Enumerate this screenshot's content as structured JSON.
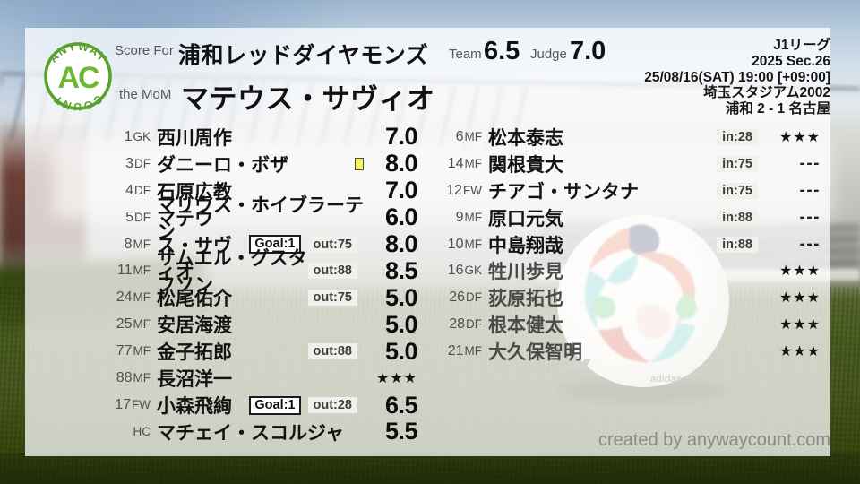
{
  "header": {
    "logo": {
      "arc_top": "ANYWAY",
      "center": "AC",
      "arc_bottom": "COUNT"
    },
    "score_for_label": "Score For",
    "team_name": "浦和レッドダイヤモンズ",
    "mom_label": "the MoM",
    "mom_name": "マテウス・サヴィオ",
    "team_score_label": "Team",
    "team_score": "6.5",
    "judge_score_label": "Judge",
    "judge_score": "7.0"
  },
  "match": {
    "league": "J1リーグ",
    "season": "2025 Sec.26",
    "datetime": "25/08/16(SAT) 19:00 [+09:00]",
    "venue": "埼玉スタジアム2002",
    "result": "浦和 2 - 1 名古屋"
  },
  "colors": {
    "logo_green": "#5aa32c",
    "yellow_card": "#f7f65f",
    "panel_overlay": "rgba(255,255,255,0.75)"
  },
  "squad": {
    "starters": [
      {
        "num": "1",
        "pos": "GK",
        "name": "西川周作",
        "rating": "7.0",
        "type": "score"
      },
      {
        "num": "3",
        "pos": "DF",
        "name": "ダニーロ・ボザ",
        "rating": "8.0",
        "type": "score",
        "yellow": true
      },
      {
        "num": "4",
        "pos": "DF",
        "name": "石原広教",
        "rating": "7.0",
        "type": "score"
      },
      {
        "num": "5",
        "pos": "DF",
        "name": "マリウス・ホイブラーテン",
        "rating": "6.0",
        "type": "score"
      },
      {
        "num": "8",
        "pos": "MF",
        "name": "マテウス・サヴィオ",
        "rating": "8.0",
        "type": "score",
        "goal": "Goal:1",
        "sub": "out:75"
      },
      {
        "num": "11",
        "pos": "MF",
        "name": "サムエル・グスタフソン",
        "rating": "8.5",
        "type": "score",
        "sub": "out:88"
      },
      {
        "num": "24",
        "pos": "MF",
        "name": "松尾佑介",
        "rating": "5.0",
        "type": "score",
        "sub": "out:75"
      },
      {
        "num": "25",
        "pos": "MF",
        "name": "安居海渡",
        "rating": "5.0",
        "type": "score"
      },
      {
        "num": "77",
        "pos": "MF",
        "name": "金子拓郎",
        "rating": "5.0",
        "type": "score",
        "sub": "out:88"
      },
      {
        "num": "88",
        "pos": "MF",
        "name": "長沼洋一",
        "rating": "★★★",
        "type": "stars"
      },
      {
        "num": "17",
        "pos": "FW",
        "name": "小森飛絢",
        "rating": "6.5",
        "type": "score",
        "goal": "Goal:1",
        "sub": "out:28"
      },
      {
        "num": "",
        "pos": "HC",
        "name": "マチェイ・スコルジャ",
        "rating": "5.5",
        "type": "score"
      }
    ],
    "bench": [
      {
        "num": "6",
        "pos": "MF",
        "name": "松本泰志",
        "rating": "★★★",
        "type": "stars",
        "sub": "in:28"
      },
      {
        "num": "14",
        "pos": "MF",
        "name": "関根貴大",
        "rating": "---",
        "type": "dashes",
        "sub": "in:75"
      },
      {
        "num": "12",
        "pos": "FW",
        "name": "チアゴ・サンタナ",
        "rating": "---",
        "type": "dashes",
        "sub": "in:75"
      },
      {
        "num": "9",
        "pos": "MF",
        "name": "原口元気",
        "rating": "---",
        "type": "dashes",
        "sub": "in:88"
      },
      {
        "num": "10",
        "pos": "MF",
        "name": "中島翔哉",
        "rating": "---",
        "type": "dashes",
        "sub": "in:88"
      },
      {
        "num": "16",
        "pos": "GK",
        "name": "牲川歩見",
        "rating": "★★★",
        "type": "stars",
        "dim": true
      },
      {
        "num": "26",
        "pos": "DF",
        "name": "荻原拓也",
        "rating": "★★★",
        "type": "stars",
        "dim": true
      },
      {
        "num": "28",
        "pos": "DF",
        "name": "根本健太",
        "rating": "★★★",
        "type": "stars",
        "dim": true
      },
      {
        "num": "21",
        "pos": "MF",
        "name": "大久保智明",
        "rating": "★★★",
        "type": "stars",
        "dim": true
      }
    ]
  },
  "footer": {
    "credit": "created by anywaycount.com"
  }
}
